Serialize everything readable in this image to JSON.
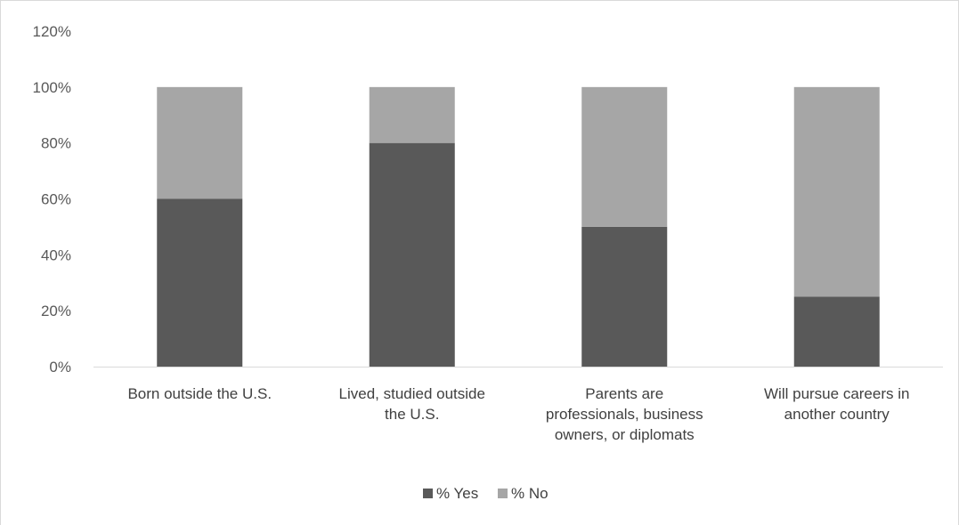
{
  "chart_data": {
    "type": "bar",
    "stacked": true,
    "categories": [
      [
        "Born outside the U.S."
      ],
      [
        "Lived, studied outside",
        "the U.S."
      ],
      [
        "Parents are",
        "professionals, business",
        "owners, or diplomats"
      ],
      [
        "Will pursue careers in",
        "another country"
      ]
    ],
    "series": [
      {
        "name": "% Yes",
        "values": [
          60,
          80,
          50,
          25
        ],
        "color": "#595959"
      },
      {
        "name": "% No",
        "values": [
          40,
          20,
          50,
          75
        ],
        "color": "#a6a6a6"
      }
    ],
    "y_ticks": [
      "0%",
      "20%",
      "40%",
      "60%",
      "80%",
      "100%",
      "120%"
    ],
    "ylim": [
      0,
      120
    ],
    "grid": false,
    "legend_position": "bottom"
  }
}
